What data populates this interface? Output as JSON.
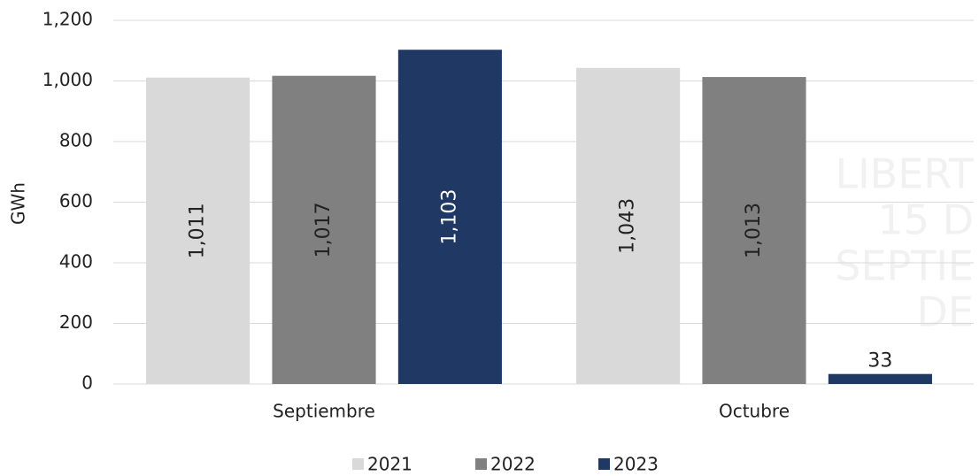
{
  "chart_data": {
    "type": "bar",
    "y_label": "GWh",
    "categories": [
      "Septiembre",
      "Octubre"
    ],
    "series": [
      {
        "name": "2021",
        "color": "#d9d9d9",
        "values": [
          1011,
          1043
        ],
        "value_labels": [
          "1,011",
          "1,043"
        ]
      },
      {
        "name": "2022",
        "color": "#808080",
        "values": [
          1017,
          1013
        ],
        "value_labels": [
          "1,017",
          "1,013"
        ]
      },
      {
        "name": "2023",
        "color": "#203864",
        "values": [
          1103,
          33
        ],
        "value_labels": [
          "1,103",
          "33"
        ]
      }
    ],
    "ylim": [
      0,
      1200
    ],
    "yticks": [
      0,
      200,
      400,
      600,
      800,
      {
        "value": 1000,
        "label": "1,000"
      },
      {
        "value": 1200,
        "label": "1,200"
      }
    ],
    "grid": true,
    "legend": "bottom",
    "watermark": [
      "LIBERT",
      "15 D",
      "SEPTIE",
      "DE"
    ]
  }
}
